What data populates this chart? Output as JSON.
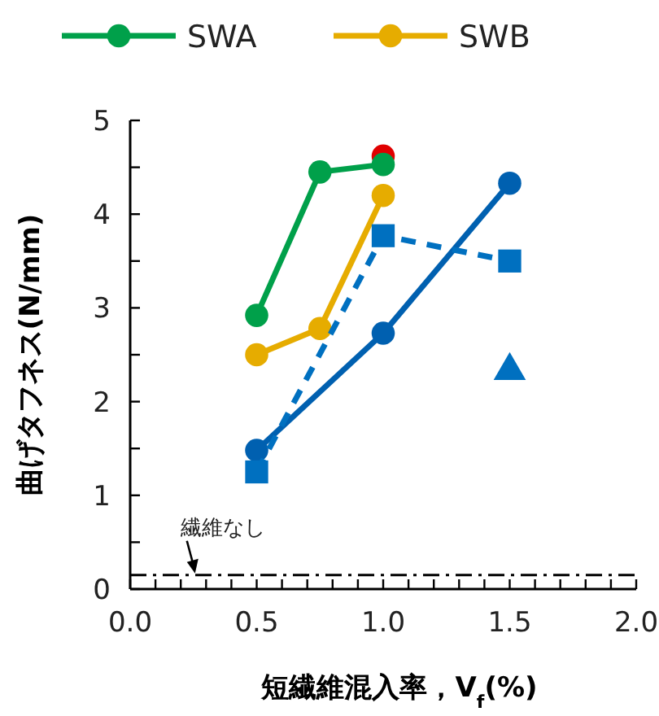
{
  "chart_data": {
    "type": "line",
    "xlabel": "短繊維混入率，V$_{f}$(%)",
    "ylabel": "曲げタフネス(N/mm)",
    "xlim": [
      0,
      2
    ],
    "ylim": [
      0,
      5
    ],
    "xticks": [
      {
        "value": 0,
        "label": "0.0"
      },
      {
        "value": 0.1,
        "label": null
      },
      {
        "value": 0.2,
        "label": null
      },
      {
        "value": 0.3,
        "label": null
      },
      {
        "value": 0.4,
        "label": null
      },
      {
        "value": 0.5,
        "label": "0.5"
      },
      {
        "value": 0.6,
        "label": null
      },
      {
        "value": 0.7,
        "label": null
      },
      {
        "value": 0.8,
        "label": null
      },
      {
        "value": 0.9,
        "label": null
      },
      {
        "value": 1,
        "label": "1.0"
      },
      {
        "value": 1.1,
        "label": null
      },
      {
        "value": 1.2,
        "label": null
      },
      {
        "value": 1.3,
        "label": null
      },
      {
        "value": 1.4,
        "label": null
      },
      {
        "value": 1.5,
        "label": "1.5"
      },
      {
        "value": 1.6,
        "label": null
      },
      {
        "value": 1.7,
        "label": null
      },
      {
        "value": 1.8,
        "label": null
      },
      {
        "value": 1.9,
        "label": null
      },
      {
        "value": 2,
        "label": "2.0"
      }
    ],
    "yticks": [
      0,
      {
        "value": 0.5,
        "label": null
      },
      1,
      {
        "value": 1.5,
        "label": null
      },
      2,
      {
        "value": 2.5,
        "label": null
      },
      3,
      {
        "value": 3.5,
        "label": null
      },
      4,
      {
        "value": 4.5,
        "label": null
      },
      5
    ],
    "grid": false,
    "legend": "top",
    "series": [
      {
        "type": "scatter",
        "color": "#e00000",
        "x": [
          1.0
        ],
        "values": [
          4.62
        ],
        "marker": "circle"
      },
      {
        "name": "SWA",
        "color": "#00a04a",
        "x": [
          0.5,
          0.75,
          1.0
        ],
        "values": [
          2.92,
          4.45,
          4.53
        ],
        "marker": "circle",
        "line_style": "solid"
      },
      {
        "name": "SWB",
        "color": "#e6ac00",
        "x": [
          0.5,
          0.75,
          1.0
        ],
        "values": [
          2.5,
          2.78,
          4.2
        ],
        "marker": "circle",
        "line_style": "solid"
      },
      {
        "color": "#0060b0",
        "x": [
          0.5,
          1.0,
          1.5
        ],
        "values": [
          1.48,
          2.73,
          4.33
        ],
        "marker": "circle",
        "line_style": "solid"
      },
      {
        "color": "#0070c0",
        "x": [
          0.5,
          1.0,
          1.5
        ],
        "values": [
          1.25,
          3.77,
          3.5
        ],
        "marker": "square",
        "line_style": "dashed"
      },
      {
        "type": "scatter",
        "color": "#0070c0",
        "x": [
          1.5
        ],
        "values": [
          2.33
        ],
        "marker": "triangle"
      }
    ],
    "ref_lines": [
      {
        "axis": "y",
        "value": 0.15,
        "color": "#000000",
        "line_style": "dashdot"
      }
    ],
    "annotations": [
      {
        "text": "繊維なし",
        "x": 0.25,
        "y": 0.15
      }
    ]
  }
}
